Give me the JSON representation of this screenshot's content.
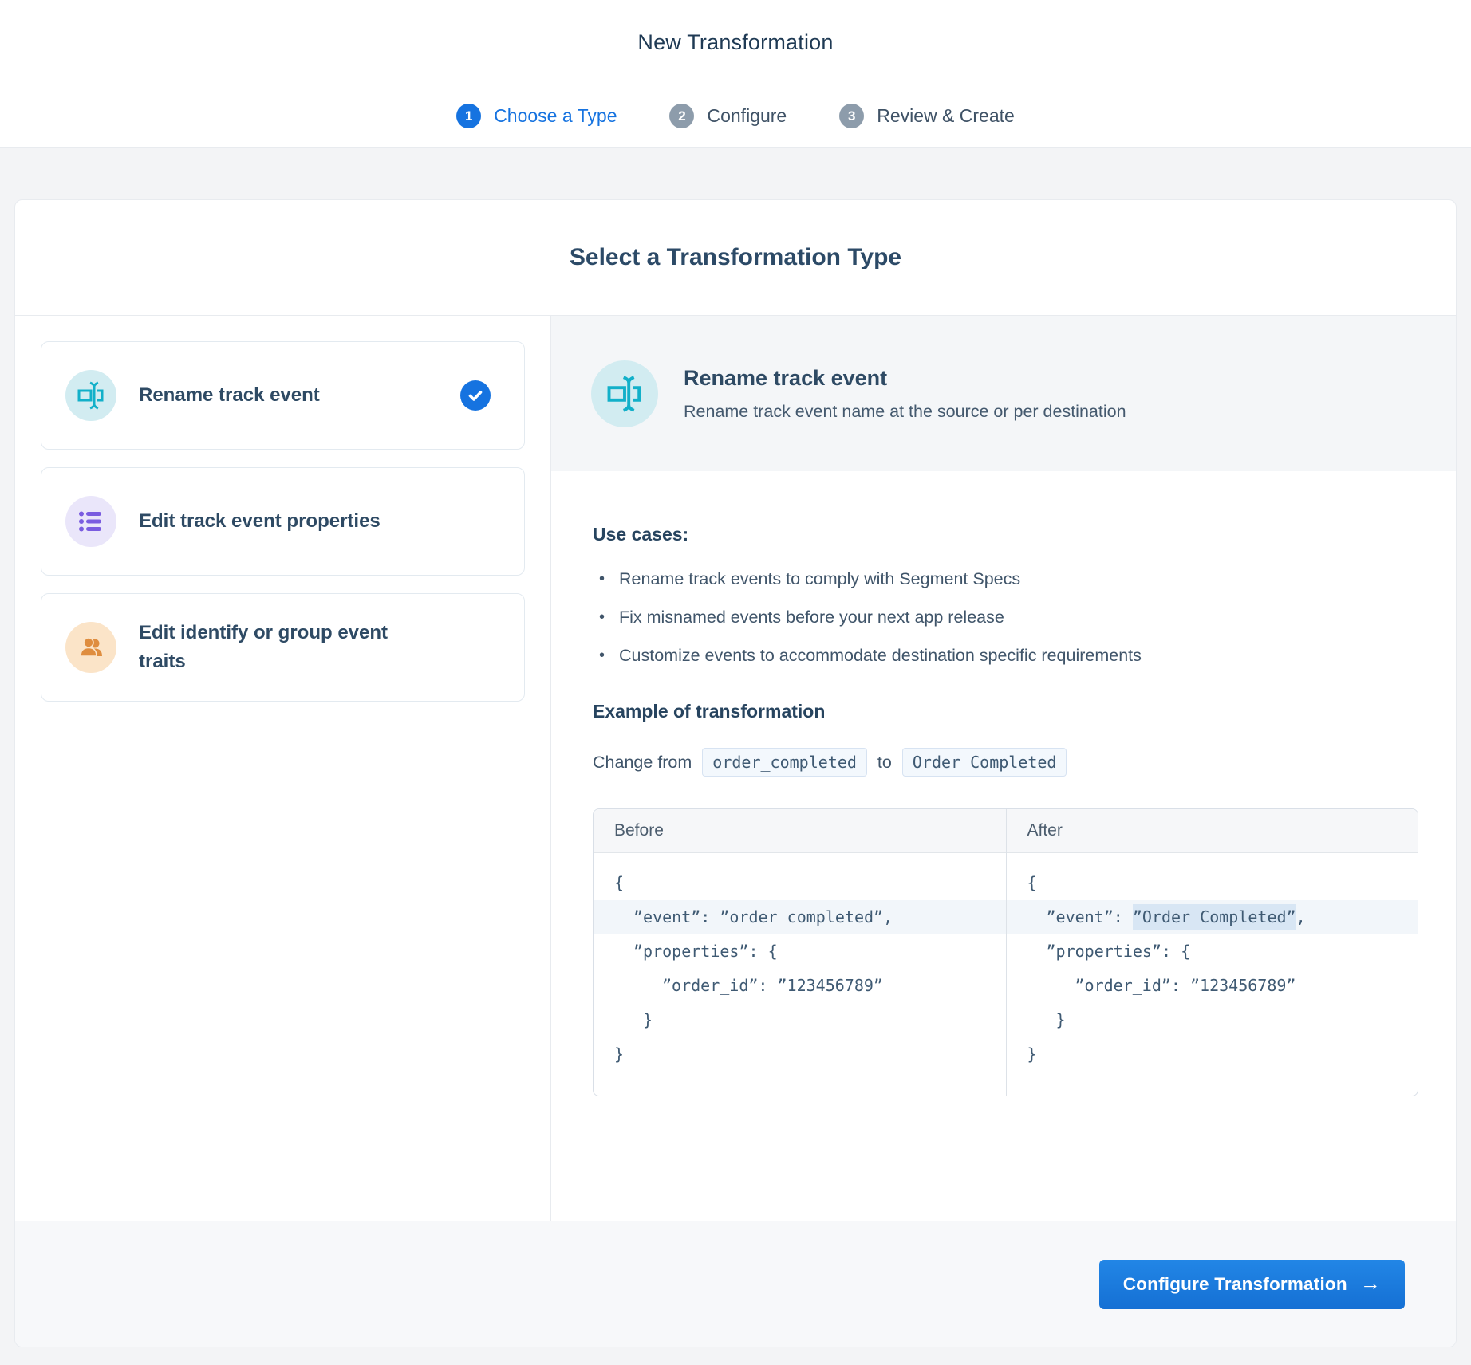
{
  "header": {
    "title": "New Transformation"
  },
  "steps": [
    {
      "number": "1",
      "label": "Choose a Type",
      "active": true
    },
    {
      "number": "2",
      "label": "Configure",
      "active": false
    },
    {
      "number": "3",
      "label": "Review & Create",
      "active": false
    }
  ],
  "page_title": "Select a Transformation Type",
  "options": [
    {
      "label": "Rename track event",
      "icon": "rename-icon",
      "selected": true
    },
    {
      "label": "Edit track event properties",
      "icon": "list-icon",
      "selected": false
    },
    {
      "label": "Edit identify or group event traits",
      "icon": "users-icon",
      "selected": false
    }
  ],
  "detail": {
    "title": "Rename track event",
    "description": "Rename track event name at the source or per destination",
    "use_cases_heading": "Use cases:",
    "use_cases": [
      "Rename track events to comply with Segment Specs",
      "Fix misnamed events before your next app release",
      "Customize events to accommodate destination specific requirements"
    ],
    "example_heading": "Example of transformation",
    "change_prefix": "Change from",
    "change_from_code": "order_completed",
    "change_connector": "to",
    "change_to_code": "Order Completed",
    "before_label": "Before",
    "after_label": "After",
    "before_code": [
      {
        "indent": 0,
        "shaded": false,
        "parts": [
          {
            "text": "{"
          }
        ]
      },
      {
        "indent": 2,
        "shaded": true,
        "parts": [
          {
            "text": "”event”: ”order_completed”,"
          }
        ]
      },
      {
        "indent": 2,
        "shaded": false,
        "parts": [
          {
            "text": "”properties”: {"
          }
        ]
      },
      {
        "indent": 5,
        "shaded": false,
        "parts": [
          {
            "text": "”order_id”: ”123456789”"
          }
        ]
      },
      {
        "indent": 3,
        "shaded": false,
        "parts": [
          {
            "text": "}"
          }
        ]
      },
      {
        "indent": 0,
        "shaded": false,
        "parts": [
          {
            "text": "}"
          }
        ]
      }
    ],
    "after_code": [
      {
        "indent": 0,
        "shaded": false,
        "parts": [
          {
            "text": "{"
          }
        ]
      },
      {
        "indent": 2,
        "shaded": true,
        "parts": [
          {
            "text": "”event”: "
          },
          {
            "text": "”Order Completed”",
            "mark": true
          },
          {
            "text": ","
          }
        ]
      },
      {
        "indent": 2,
        "shaded": false,
        "parts": [
          {
            "text": "”properties”: {"
          }
        ]
      },
      {
        "indent": 5,
        "shaded": false,
        "parts": [
          {
            "text": "”order_id”: ”123456789”"
          }
        ]
      },
      {
        "indent": 3,
        "shaded": false,
        "parts": [
          {
            "text": "}"
          }
        ]
      },
      {
        "indent": 0,
        "shaded": false,
        "parts": [
          {
            "text": "}"
          }
        ]
      }
    ]
  },
  "footer": {
    "button_label": "Configure Transformation",
    "button_arrow": "→"
  },
  "colors": {
    "accent_blue": "#1673e0",
    "step_gray": "#8d9cab",
    "teal": "#12b0c9",
    "teal_bg": "#d2ecf1",
    "purple": "#7a5ce0",
    "purple_bg": "#eae6fa",
    "orange": "#df8d3f",
    "orange_bg": "#fbe4c8",
    "mark_bg": "#d8e6f4"
  }
}
